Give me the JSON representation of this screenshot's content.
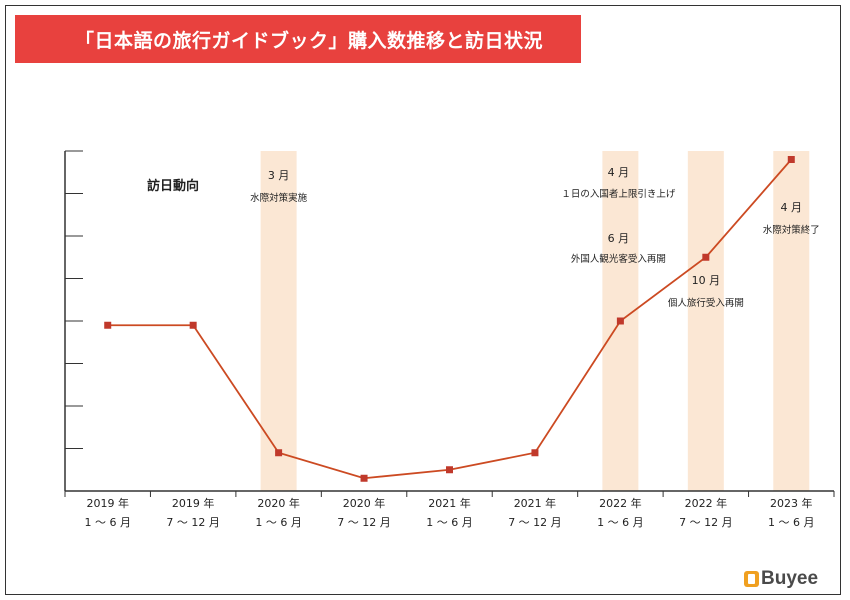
{
  "title": "「日本語の旅行ガイドブック」購入数推移と訪日状況",
  "section_label": "訪日動向",
  "brand": "Buyee",
  "colors": {
    "line": "#cc4a22",
    "marker": "#c0392b",
    "band": "#fbe7d4",
    "title_bg": "#e8413e",
    "axis": "#333333"
  },
  "chart_data": {
    "type": "line",
    "title": "「日本語の旅行ガイドブック」購入数推移と訪日状況",
    "xlabel": "",
    "ylabel": "",
    "ylim": [
      0,
      8
    ],
    "y_ticks": 8,
    "grid": false,
    "categories": [
      {
        "year": "2019 年",
        "period": "1 ～ 6 月"
      },
      {
        "year": "2019 年",
        "period": "7 ～ 12 月"
      },
      {
        "year": "2020 年",
        "period": "1 ～ 6 月"
      },
      {
        "year": "2020 年",
        "period": "7 ～ 12 月"
      },
      {
        "year": "2021 年",
        "period": "1 ～ 6 月"
      },
      {
        "year": "2021 年",
        "period": "7 ～ 12 月"
      },
      {
        "year": "2022 年",
        "period": "1 ～ 6 月"
      },
      {
        "year": "2022 年",
        "period": "7 ～ 12 月"
      },
      {
        "year": "2023 年",
        "period": "1 ～ 6 月"
      }
    ],
    "series": [
      {
        "values": [
          3.9,
          3.9,
          0.9,
          0.3,
          0.5,
          0.9,
          4.0,
          5.5,
          7.8
        ]
      }
    ],
    "highlights": [
      {
        "index": 2,
        "annotations": [
          {
            "month": "3 月",
            "text": "水際対策実施"
          }
        ]
      },
      {
        "index": 6,
        "annotations": [
          {
            "month": "4 月",
            "text": "１日の入国者上限引き上げ"
          },
          {
            "month": "6 月",
            "text": "外国人観光客受入再開"
          }
        ]
      },
      {
        "index": 7,
        "annotations": [
          {
            "month": "10 月",
            "text": "個人旅行受入再開"
          }
        ]
      },
      {
        "index": 8,
        "annotations": [
          {
            "month": "4 月",
            "text": "水際対策終了"
          }
        ]
      }
    ]
  }
}
